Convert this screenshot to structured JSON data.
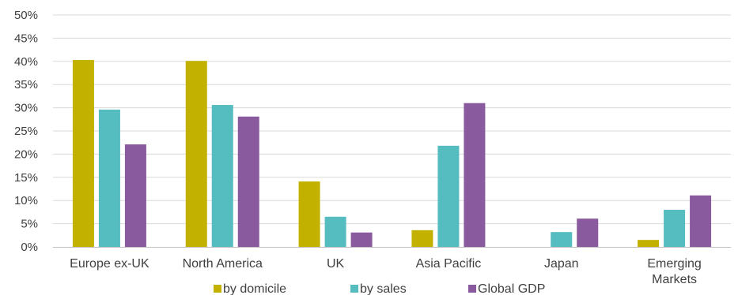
{
  "chart_data": {
    "type": "bar",
    "categories": [
      [
        "Europe ex-UK"
      ],
      [
        "North America"
      ],
      [
        "UK"
      ],
      [
        "Asia Pacific"
      ],
      [
        "Japan"
      ],
      [
        "Emerging",
        "Markets"
      ]
    ],
    "series": [
      {
        "name": "by domicile",
        "color": "#C3B100",
        "values": [
          40.3,
          40.1,
          14.1,
          3.6,
          0,
          1.5
        ]
      },
      {
        "name": "by sales",
        "color": "#55BCC0",
        "values": [
          29.6,
          30.6,
          6.5,
          21.8,
          3.2,
          8.0
        ]
      },
      {
        "name": "Global GDP",
        "color": "#8A5A9E",
        "values": [
          22.1,
          28.1,
          3.1,
          31.0,
          6.1,
          11.1
        ]
      }
    ],
    "ylim": [
      0,
      50
    ],
    "yticks": [
      "0%",
      "5%",
      "10%",
      "15%",
      "20%",
      "25%",
      "30%",
      "35%",
      "40%",
      "45%",
      "50%"
    ],
    "grid": true,
    "legend_position": "bottom"
  }
}
